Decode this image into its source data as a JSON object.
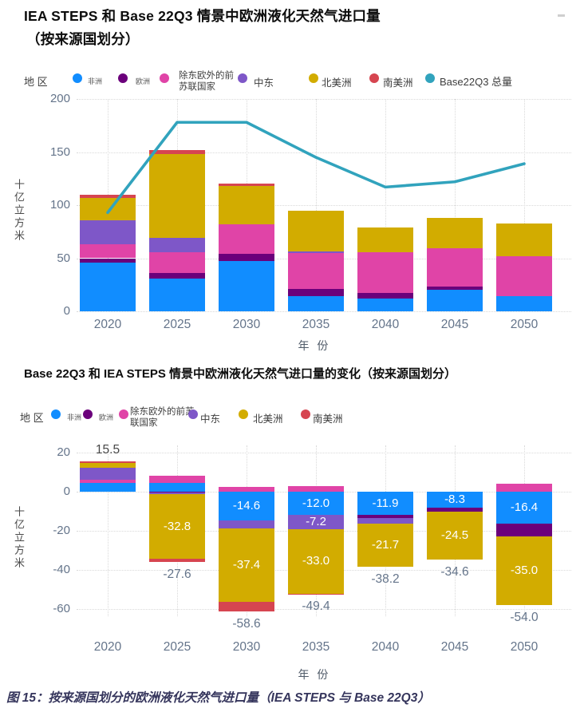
{
  "page": {
    "caption": "图 15：按来源国划分的欧洲液化天然气进口量（IEA STEPS 与 Base 22Q3）"
  },
  "chart_data": [
    {
      "type": "bar",
      "subtype": "stacked-column-with-line",
      "title_lines": [
        "IEA STEPS 和 Base 22Q3 情景中欧洲液化天然气进口量",
        "（按来源国划分）"
      ],
      "legend_title": "地 区",
      "legend_position": "top",
      "grid": true,
      "xlabel": "年 份",
      "ylabel": "十亿立方米",
      "ylim": [
        0,
        200
      ],
      "yticks": [
        0,
        50,
        100,
        150,
        200
      ],
      "categories": [
        "2020",
        "2025",
        "2030",
        "2035",
        "2040",
        "2045",
        "2050"
      ],
      "series": [
        {
          "name": "非洲",
          "color": "#118DFF",
          "values": [
            46,
            31,
            47,
            14.5,
            12,
            20,
            14.5
          ]
        },
        {
          "name": "欧洲",
          "color": "#6B007B",
          "values": [
            4,
            5,
            7,
            6.5,
            5.5,
            3.5,
            0
          ]
        },
        {
          "name": "除东欧外的前苏联国家",
          "color": "#E044A7",
          "values": [
            13,
            20,
            28,
            34,
            38,
            36,
            37.5
          ]
        },
        {
          "name": "中东",
          "color": "#7E57C8",
          "values": [
            23,
            13.5,
            0,
            1.5,
            0,
            0,
            0
          ]
        },
        {
          "name": "北美洲",
          "color": "#D2AC00",
          "values": [
            21,
            78.5,
            36,
            38.5,
            23.5,
            28.5,
            30.5
          ]
        },
        {
          "name": "南美洲",
          "color": "#D64550",
          "values": [
            3,
            4,
            2,
            0,
            0,
            0,
            0
          ]
        }
      ],
      "line_series": {
        "name": "Base22Q3 总量",
        "color": "#31A3BD",
        "values": [
          93,
          178,
          178,
          145,
          117,
          122,
          139
        ]
      }
    },
    {
      "type": "bar",
      "subtype": "stacked-column-positive-negative",
      "title_lines": [
        "Base 22Q3 和 IEA STEPS 情景中欧洲液化天然气进口量的变化（按来源国划分）"
      ],
      "legend_title": "地 区",
      "legend_position": "top",
      "grid": true,
      "xlabel": "年 份",
      "ylabel": "十亿立方米",
      "ylim": [
        -60,
        20
      ],
      "yticks": [
        20,
        0,
        -20,
        -40,
        -60
      ],
      "categories": [
        "2020",
        "2025",
        "2030",
        "2035",
        "2040",
        "2045",
        "2050"
      ],
      "series": [
        {
          "name": "非洲",
          "color": "#118DFF",
          "values": [
            4.4,
            4.4,
            -14.6,
            -12.0,
            -11.9,
            -8.3,
            -16.4
          ]
        },
        {
          "name": "欧洲",
          "color": "#6B007B",
          "values": [
            0,
            -0.6,
            0,
            0,
            -1.6,
            -1.8,
            -6.6
          ]
        },
        {
          "name": "除东欧外的前苏联国家",
          "color": "#E044A7",
          "values": [
            1.8,
            3.9,
            2.5,
            3.0,
            0,
            0,
            4.0
          ]
        },
        {
          "name": "中东",
          "color": "#7E57C8",
          "values": [
            6.1,
            -0.8,
            -4.3,
            -7.2,
            -3.0,
            0,
            0
          ]
        },
        {
          "name": "北美洲",
          "color": "#D2AC00",
          "values": [
            2.4,
            -32.8,
            -37.4,
            -33.0,
            -21.7,
            -24.5,
            -35.0
          ]
        },
        {
          "name": "南美洲",
          "color": "#D64550",
          "values": [
            0.8,
            -1.7,
            -4.8,
            -0.2,
            0,
            0,
            0
          ]
        }
      ],
      "segment_labels": [
        {
          "category": "2025",
          "series": "北美洲",
          "text": "-32.8"
        },
        {
          "category": "2030",
          "series": "非洲",
          "text": "-14.6"
        },
        {
          "category": "2030",
          "series": "北美洲",
          "text": "-37.4"
        },
        {
          "category": "2035",
          "series": "非洲",
          "text": "-12.0"
        },
        {
          "category": "2035",
          "series": "中东",
          "text": "-7.2"
        },
        {
          "category": "2035",
          "series": "北美洲",
          "text": "-33.0"
        },
        {
          "category": "2040",
          "series": "非洲",
          "text": "-11.9"
        },
        {
          "category": "2040",
          "series": "北美洲",
          "text": "-21.7"
        },
        {
          "category": "2045",
          "series": "非洲",
          "text": "-8.3"
        },
        {
          "category": "2045",
          "series": "北美洲",
          "text": "-24.5"
        },
        {
          "category": "2050",
          "series": "非洲",
          "text": "-16.4"
        },
        {
          "category": "2050",
          "series": "北美洲",
          "text": "-35.0"
        }
      ],
      "total_labels": [
        "15.5",
        "-27.6",
        "-58.6",
        "-49.4",
        "-38.2",
        "-34.6",
        "-54.0"
      ]
    }
  ]
}
